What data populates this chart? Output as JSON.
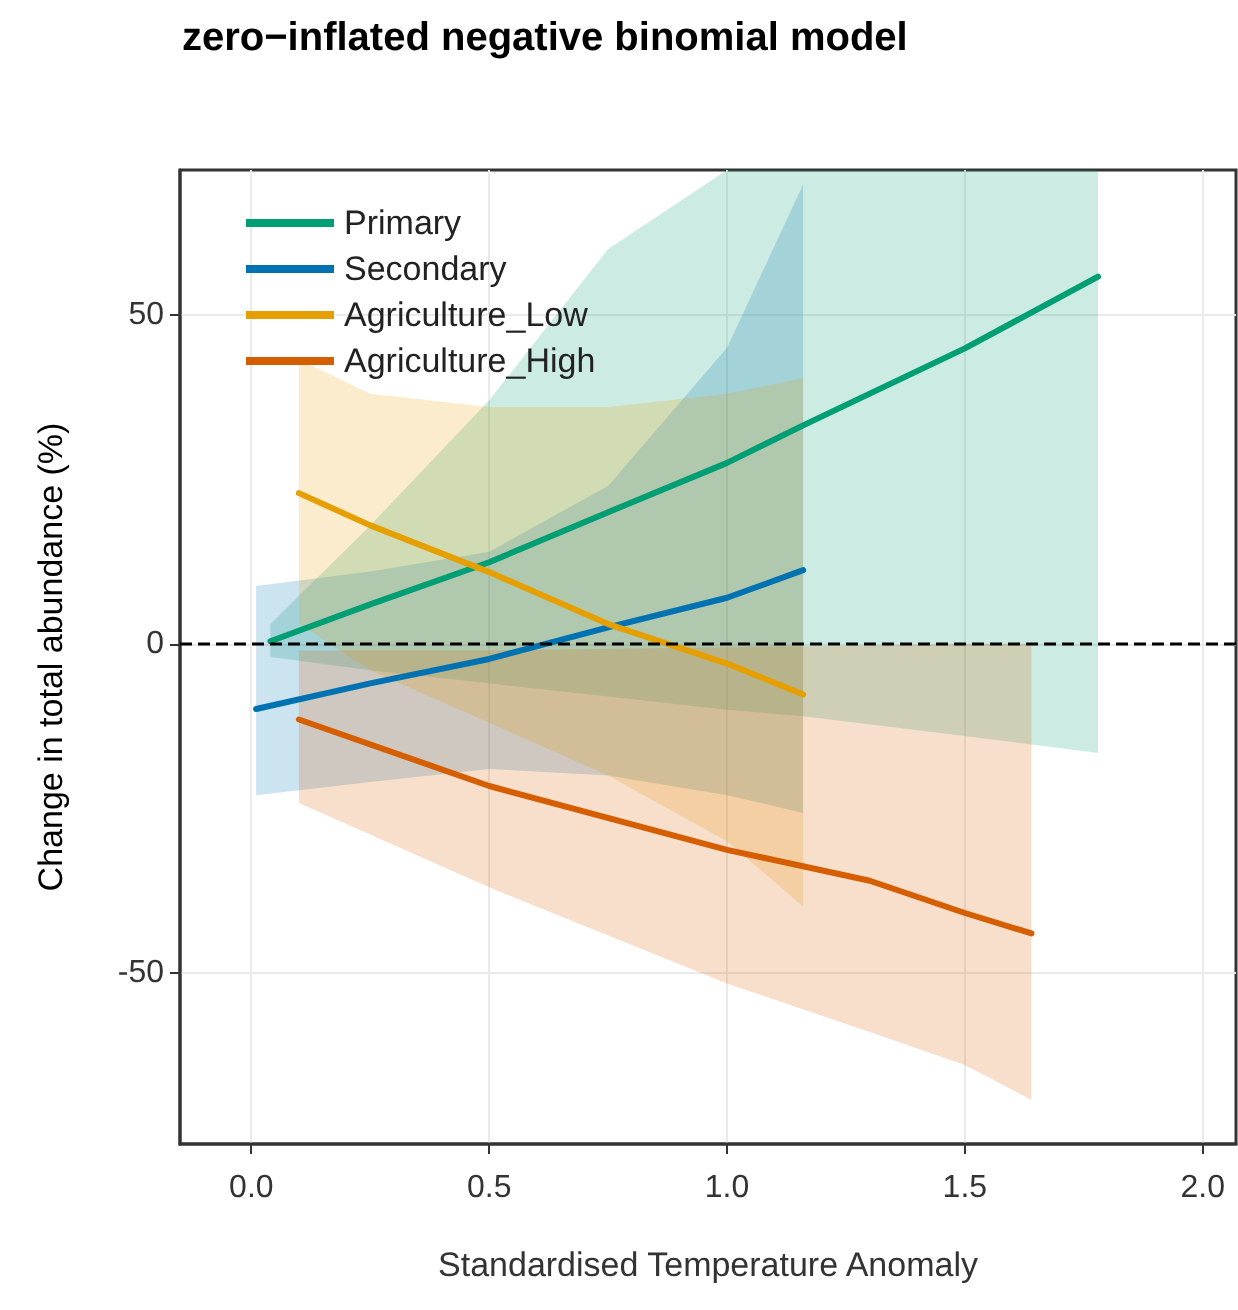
{
  "chart_data": {
    "type": "line",
    "title": "zero−inflated negative binomial model",
    "xlabel": "Standardised Temperature Anomaly",
    "ylabel": "Change in total abundance (%)",
    "xlim": [
      -0.15,
      2.07
    ],
    "ylim": [
      -76,
      72
    ],
    "xticks": [
      {
        "value": 0,
        "label": "0.0"
      },
      {
        "value": 0.5,
        "label": "0.5"
      },
      {
        "value": 1,
        "label": "1.0"
      },
      {
        "value": 1.5,
        "label": "1.5"
      },
      {
        "value": 2,
        "label": "2.0"
      }
    ],
    "yticks": [
      -50,
      0,
      50
    ],
    "grid": true,
    "legend": "top left",
    "marker": "none",
    "line_style": "solid",
    "ref_lines": [
      {
        "axis": "y",
        "value": 0,
        "line_style": "dashed",
        "color": "#000000"
      }
    ],
    "series": [
      {
        "name": "Primary",
        "color": "#009e73",
        "x": [
          0.04,
          0.25,
          0.5,
          0.75,
          1.0,
          1.16,
          1.5,
          1.78
        ],
        "values": [
          0.4,
          6,
          12.4,
          20,
          27.5,
          33.2,
          44.9,
          55.8
        ],
        "lower": [
          -2,
          -4,
          -6,
          -8,
          -10,
          -11,
          -14,
          -16.6
        ],
        "upper": [
          3,
          18,
          37,
          60,
          72,
          72,
          72,
          72
        ]
      },
      {
        "name": "Secondary",
        "color": "#0072b2",
        "x": [
          0.01,
          0.25,
          0.5,
          0.75,
          1.0,
          1.16
        ],
        "values": [
          -9.9,
          -6,
          -2.3,
          2.5,
          7,
          11.2
        ],
        "lower": [
          -23,
          -21,
          -19,
          -20,
          -23,
          -25.7
        ],
        "upper": [
          8.8,
          11,
          14,
          24,
          45,
          69.8
        ]
      },
      {
        "name": "Agriculture_Low",
        "color": "#e69f00",
        "x": [
          0.1,
          0.25,
          0.5,
          0.75,
          1.0,
          1.16
        ],
        "values": [
          22.9,
          18,
          10.9,
          3,
          -3,
          -7.7
        ],
        "lower": [
          3,
          -4,
          -12,
          -20,
          -30,
          -39.9
        ],
        "upper": [
          43.2,
          38,
          36,
          36,
          38,
          40.4
        ]
      },
      {
        "name": "Agriculture_High",
        "color": "#d55e00",
        "x": [
          0.1,
          0.5,
          1.0,
          1.3,
          1.5,
          1.64
        ],
        "values": [
          -11.5,
          -21.6,
          -31.3,
          -36,
          -40.9,
          -44
        ],
        "lower": [
          -24.2,
          -37,
          -51.6,
          -59,
          -64,
          -69.3
        ],
        "upper": [
          -1,
          -1,
          -0.5,
          -0.3,
          0,
          0
        ]
      }
    ]
  }
}
